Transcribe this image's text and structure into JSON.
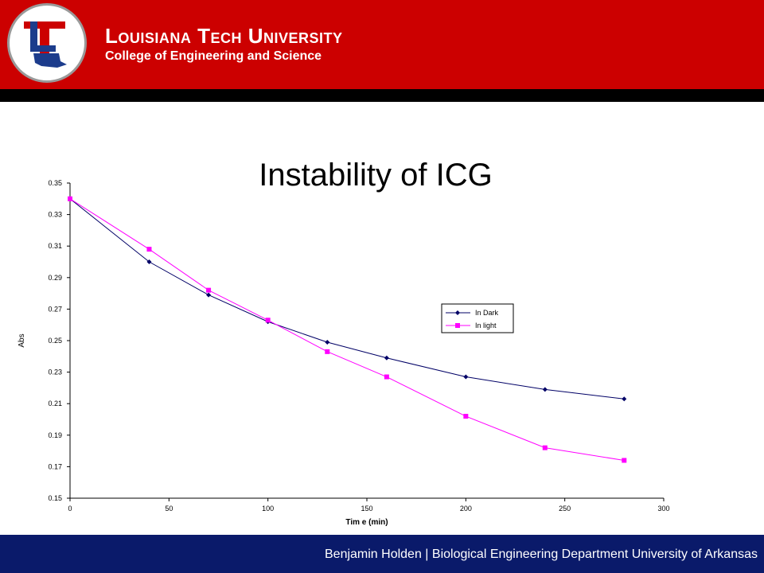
{
  "header": {
    "university_name": "Louisiana Tech University",
    "college": "College of Engineering and Science",
    "logo_icon": "louisiana-tech-logo-icon"
  },
  "slide": {
    "title": "Instability of ICG"
  },
  "footer": {
    "text": "Benjamin Holden | Biological Engineering Department University of Arkansas"
  },
  "colors": {
    "header_red": "#cc0000",
    "band_black": "#000000",
    "footer_blue": "#0a1a6a",
    "series_dark": "#000066",
    "series_light": "#ff00ff"
  },
  "chart_data": {
    "type": "line",
    "title": "",
    "xlabel": "Tim e (min)",
    "ylabel": "Abs",
    "xlim": [
      0,
      300
    ],
    "ylim": [
      0.15,
      0.35
    ],
    "xticks": [
      "0",
      "50",
      "100",
      "150",
      "200",
      "250",
      "300"
    ],
    "yticks": [
      "0.15",
      "0.17",
      "0.19",
      "0.21",
      "0.23",
      "0.25",
      "0.27",
      "0.29",
      "0.31",
      "0.33",
      "0.35"
    ],
    "grid": false,
    "legend_position": "right",
    "series": [
      {
        "name": "In Dark",
        "color": "#000066",
        "marker": "diamond",
        "x": [
          0,
          40,
          70,
          100,
          130,
          160,
          200,
          240,
          280
        ],
        "y": [
          0.34,
          0.3,
          0.279,
          0.262,
          0.249,
          0.239,
          0.227,
          0.219,
          0.213
        ]
      },
      {
        "name": "In light",
        "color": "#ff00ff",
        "marker": "square",
        "x": [
          0,
          40,
          70,
          100,
          130,
          160,
          200,
          240,
          280
        ],
        "y": [
          0.34,
          0.308,
          0.282,
          0.263,
          0.243,
          0.227,
          0.202,
          0.182,
          0.174
        ]
      }
    ]
  }
}
